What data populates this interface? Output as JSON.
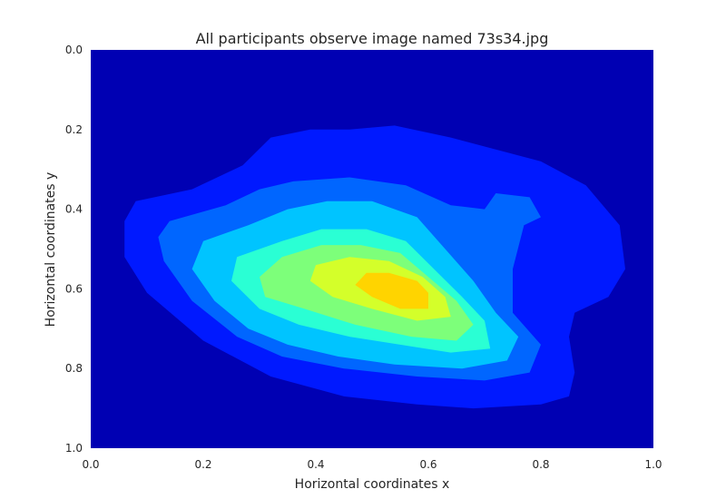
{
  "chart_data": {
    "type": "heatmap",
    "subtype": "filled-contour",
    "title": "All participants observe image named 73s34.jpg",
    "xlabel": "Horizontal coordinates x",
    "ylabel": "Horizontal coordinates y",
    "xlim": [
      0.0,
      1.0
    ],
    "ylim": [
      0.0,
      1.0
    ],
    "y_inverted": true,
    "grid": false,
    "colormap": "jet",
    "x_ticks": [
      "0.0",
      "0.2",
      "0.4",
      "0.6",
      "0.8",
      "1.0"
    ],
    "y_ticks": [
      "0.0",
      "0.2",
      "0.4",
      "0.6",
      "0.8",
      "1.0"
    ],
    "background_color": "#0000b3",
    "levels": [
      {
        "level": 1,
        "color": "#0019ff",
        "points": [
          [
            0.08,
            0.38
          ],
          [
            0.18,
            0.35
          ],
          [
            0.27,
            0.29
          ],
          [
            0.32,
            0.22
          ],
          [
            0.39,
            0.2
          ],
          [
            0.46,
            0.2
          ],
          [
            0.54,
            0.19
          ],
          [
            0.64,
            0.22
          ],
          [
            0.8,
            0.28
          ],
          [
            0.88,
            0.34
          ],
          [
            0.94,
            0.44
          ],
          [
            0.95,
            0.55
          ],
          [
            0.92,
            0.62
          ],
          [
            0.86,
            0.66
          ],
          [
            0.85,
            0.72
          ],
          [
            0.86,
            0.81
          ],
          [
            0.85,
            0.87
          ],
          [
            0.8,
            0.89
          ],
          [
            0.68,
            0.9
          ],
          [
            0.58,
            0.89
          ],
          [
            0.45,
            0.87
          ],
          [
            0.32,
            0.82
          ],
          [
            0.2,
            0.73
          ],
          [
            0.1,
            0.61
          ],
          [
            0.06,
            0.52
          ],
          [
            0.06,
            0.43
          ]
        ]
      },
      {
        "level": 2,
        "color": "#0066ff",
        "points": [
          [
            0.14,
            0.43
          ],
          [
            0.24,
            0.39
          ],
          [
            0.3,
            0.35
          ],
          [
            0.36,
            0.33
          ],
          [
            0.46,
            0.32
          ],
          [
            0.56,
            0.34
          ],
          [
            0.64,
            0.39
          ],
          [
            0.7,
            0.4
          ],
          [
            0.72,
            0.36
          ],
          [
            0.78,
            0.37
          ],
          [
            0.8,
            0.42
          ],
          [
            0.77,
            0.44
          ],
          [
            0.75,
            0.55
          ],
          [
            0.75,
            0.66
          ],
          [
            0.8,
            0.74
          ],
          [
            0.78,
            0.81
          ],
          [
            0.7,
            0.83
          ],
          [
            0.58,
            0.82
          ],
          [
            0.45,
            0.8
          ],
          [
            0.34,
            0.77
          ],
          [
            0.26,
            0.72
          ],
          [
            0.18,
            0.63
          ],
          [
            0.13,
            0.53
          ],
          [
            0.12,
            0.47
          ]
        ]
      },
      {
        "level": 3,
        "color": "#00c4ff",
        "points": [
          [
            0.2,
            0.48
          ],
          [
            0.28,
            0.44
          ],
          [
            0.35,
            0.4
          ],
          [
            0.42,
            0.38
          ],
          [
            0.5,
            0.38
          ],
          [
            0.58,
            0.42
          ],
          [
            0.63,
            0.5
          ],
          [
            0.68,
            0.58
          ],
          [
            0.72,
            0.66
          ],
          [
            0.76,
            0.72
          ],
          [
            0.74,
            0.78
          ],
          [
            0.66,
            0.8
          ],
          [
            0.54,
            0.79
          ],
          [
            0.44,
            0.77
          ],
          [
            0.35,
            0.74
          ],
          [
            0.28,
            0.7
          ],
          [
            0.22,
            0.63
          ],
          [
            0.18,
            0.55
          ]
        ]
      },
      {
        "level": 4,
        "color": "#2affd4",
        "points": [
          [
            0.26,
            0.52
          ],
          [
            0.34,
            0.48
          ],
          [
            0.41,
            0.45
          ],
          [
            0.49,
            0.45
          ],
          [
            0.56,
            0.48
          ],
          [
            0.61,
            0.55
          ],
          [
            0.66,
            0.62
          ],
          [
            0.7,
            0.68
          ],
          [
            0.71,
            0.75
          ],
          [
            0.64,
            0.76
          ],
          [
            0.55,
            0.74
          ],
          [
            0.46,
            0.72
          ],
          [
            0.37,
            0.69
          ],
          [
            0.3,
            0.65
          ],
          [
            0.25,
            0.58
          ]
        ]
      },
      {
        "level": 5,
        "color": "#7dff7a",
        "points": [
          [
            0.34,
            0.52
          ],
          [
            0.41,
            0.49
          ],
          [
            0.48,
            0.49
          ],
          [
            0.55,
            0.51
          ],
          [
            0.6,
            0.57
          ],
          [
            0.65,
            0.63
          ],
          [
            0.68,
            0.69
          ],
          [
            0.65,
            0.73
          ],
          [
            0.57,
            0.72
          ],
          [
            0.47,
            0.69
          ],
          [
            0.38,
            0.65
          ],
          [
            0.31,
            0.62
          ],
          [
            0.3,
            0.57
          ]
        ]
      },
      {
        "level": 6,
        "color": "#d4ff2a",
        "points": [
          [
            0.4,
            0.54
          ],
          [
            0.46,
            0.52
          ],
          [
            0.53,
            0.53
          ],
          [
            0.59,
            0.57
          ],
          [
            0.63,
            0.62
          ],
          [
            0.64,
            0.67
          ],
          [
            0.58,
            0.68
          ],
          [
            0.5,
            0.65
          ],
          [
            0.43,
            0.62
          ],
          [
            0.39,
            0.58
          ]
        ]
      },
      {
        "level": 7,
        "color": "#ffd400",
        "points": [
          [
            0.47,
            0.59
          ],
          [
            0.49,
            0.56
          ],
          [
            0.53,
            0.56
          ],
          [
            0.58,
            0.58
          ],
          [
            0.6,
            0.61
          ],
          [
            0.6,
            0.65
          ],
          [
            0.55,
            0.65
          ],
          [
            0.5,
            0.62
          ]
        ]
      }
    ]
  }
}
